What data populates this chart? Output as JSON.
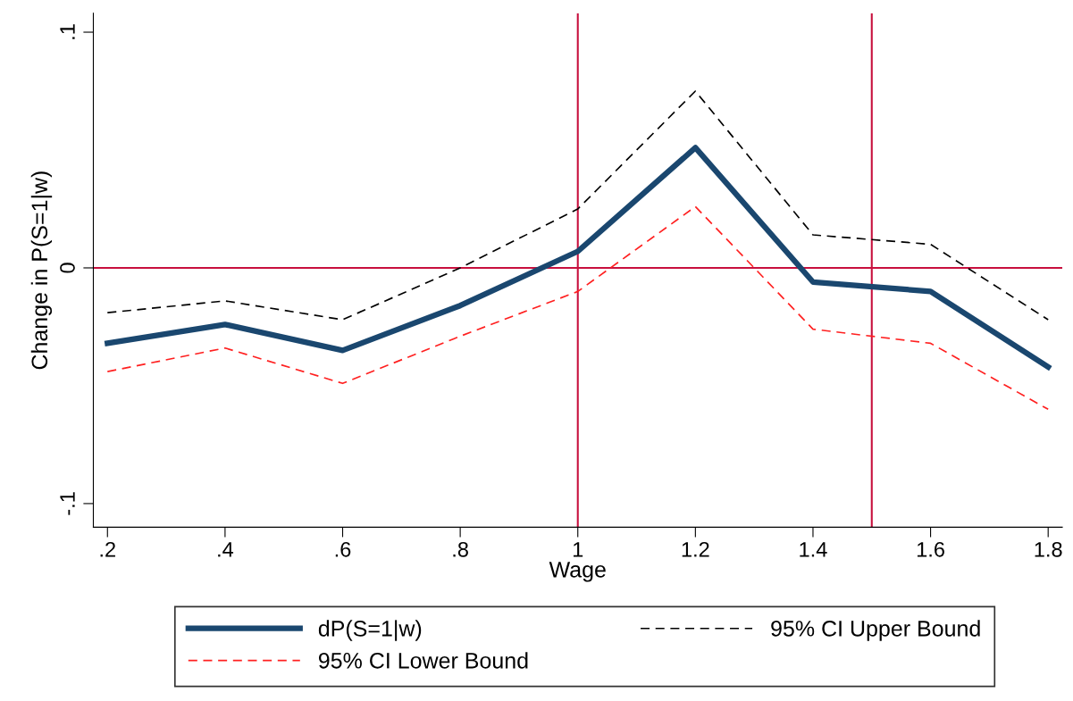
{
  "chart_data": {
    "type": "line",
    "xlabel": "Wage",
    "ylabel": "Change in P(S=1|w)",
    "x": [
      0.2,
      0.4,
      0.6,
      0.8,
      1.0,
      1.2,
      1.4,
      1.6,
      1.8
    ],
    "series": [
      {
        "name": "dP(S=1|w)",
        "color": "#1a476f",
        "line_style": "solid",
        "values": [
          -0.032,
          -0.024,
          -0.035,
          -0.016,
          0.007,
          0.051,
          -0.006,
          -0.01,
          -0.042
        ]
      },
      {
        "name": "95% CI Lower Bound",
        "color": "#ff2020",
        "line_style": "dashed",
        "values": [
          -0.044,
          -0.034,
          -0.049,
          -0.029,
          -0.01,
          0.026,
          -0.026,
          -0.032,
          -0.06
        ]
      },
      {
        "name": "95% CI Upper Bound",
        "color": "#000000",
        "line_style": "dashed",
        "values": [
          -0.019,
          -0.014,
          -0.022,
          0.0,
          0.025,
          0.075,
          0.014,
          0.01,
          -0.022
        ]
      }
    ],
    "xlim": [
      0.176,
      1.824
    ],
    "ylim": [
      -0.11,
      0.108
    ],
    "xticks": [
      {
        "value": 0.2,
        "label": ".2"
      },
      {
        "value": 0.4,
        "label": ".4"
      },
      {
        "value": 0.6,
        "label": ".6"
      },
      {
        "value": 0.8,
        "label": ".8"
      },
      1,
      1.2,
      1.4,
      1.6,
      1.8
    ],
    "yticks": [
      {
        "value": -0.1,
        "label": "-.1"
      },
      0,
      {
        "value": 0.1,
        "label": ".1"
      }
    ],
    "ref_lines": [
      {
        "axis": "x",
        "value": 1,
        "color": "#c8103e"
      },
      {
        "axis": "x",
        "value": 1.5,
        "color": "#c8103e"
      },
      {
        "axis": "y",
        "value": 0,
        "color": "#c8103e"
      }
    ],
    "grid": false,
    "legend": "bottom",
    "marker": "none"
  }
}
